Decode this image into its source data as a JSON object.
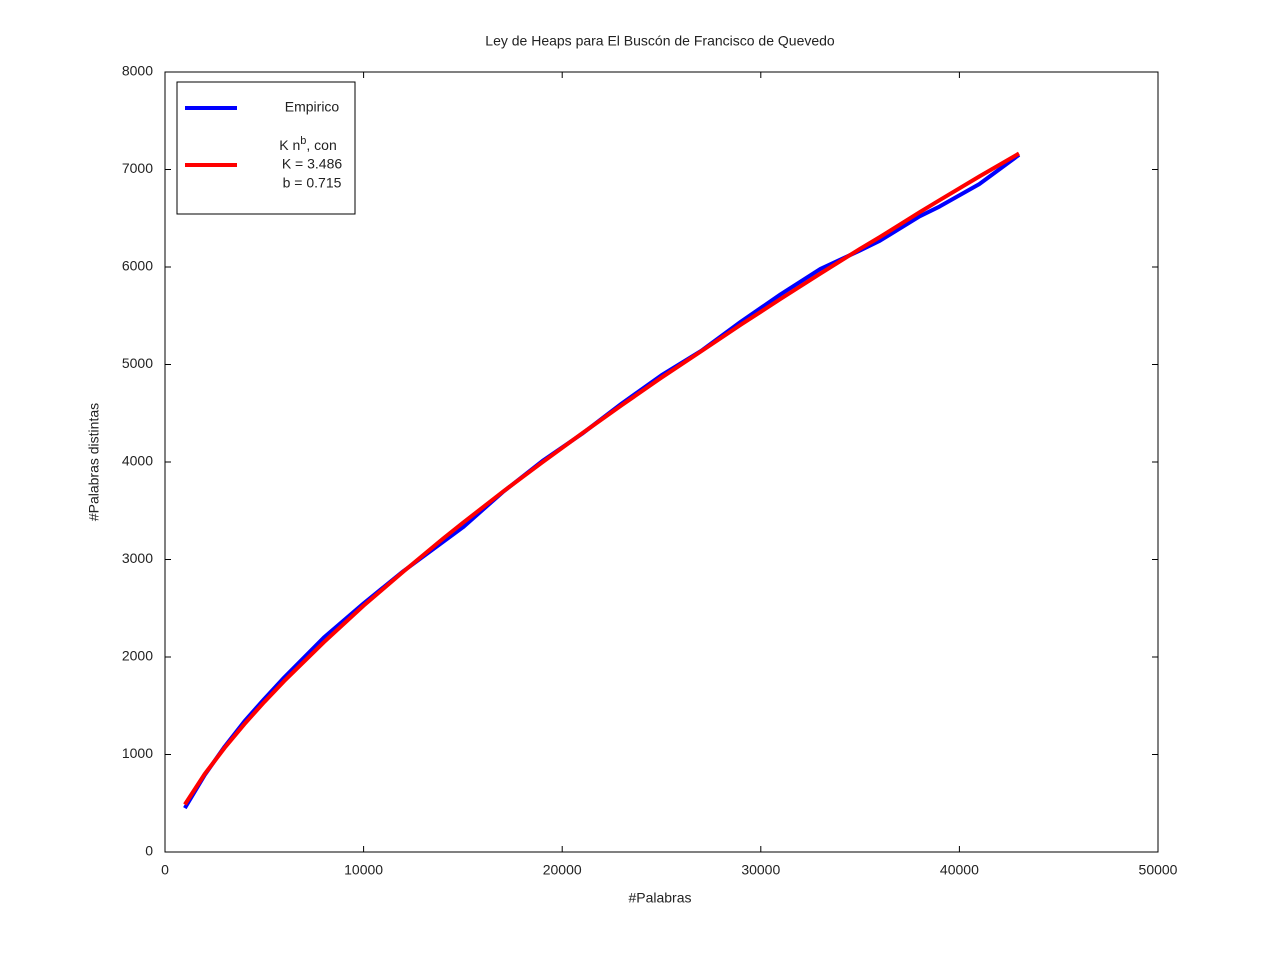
{
  "chart_data": {
    "type": "line",
    "title": "Ley de Heaps para El Buscón de Francisco de Quevedo",
    "xlabel": "#Palabras",
    "ylabel": "#Palabras distintas",
    "x": [
      1000,
      2000,
      3000,
      4000,
      5000,
      6000,
      8000,
      10000,
      12000,
      14000,
      15000,
      17000,
      19000,
      21000,
      23000,
      25000,
      27000,
      29000,
      31000,
      33000,
      35000,
      36000,
      38000,
      39000,
      41000,
      43000
    ],
    "series": [
      {
        "name": "Empirico",
        "color": "#0000ff",
        "values": [
          450,
          790,
          1080,
          1340,
          1570,
          1790,
          2200,
          2550,
          2880,
          3180,
          3330,
          3690,
          4010,
          4290,
          4600,
          4890,
          5140,
          5440,
          5720,
          5980,
          6170,
          6270,
          6520,
          6620,
          6850,
          7150
        ]
      },
      {
        "name": "K n",
        "name_sup": "b",
        "name_rest": ", con",
        "legend_lines": [
          "K = 3.486",
          "b = 0.715"
        ],
        "color": "#ff0000",
        "values": [
          487,
          800,
          1068,
          1312,
          1539,
          1753,
          2152,
          2527,
          2876,
          3214,
          3376,
          3693,
          3997,
          4294,
          4583,
          4866,
          5136,
          5409,
          5673,
          5933,
          6187,
          6308,
          6562,
          6685,
          6928,
          7164
        ]
      }
    ],
    "xlim": [
      0,
      50000
    ],
    "xticks": [
      0,
      10000,
      20000,
      30000,
      40000,
      50000
    ],
    "ylim": [
      0,
      8000
    ],
    "yticks": [
      0,
      1000,
      2000,
      3000,
      4000,
      5000,
      6000,
      7000,
      8000
    ],
    "grid": false
  }
}
